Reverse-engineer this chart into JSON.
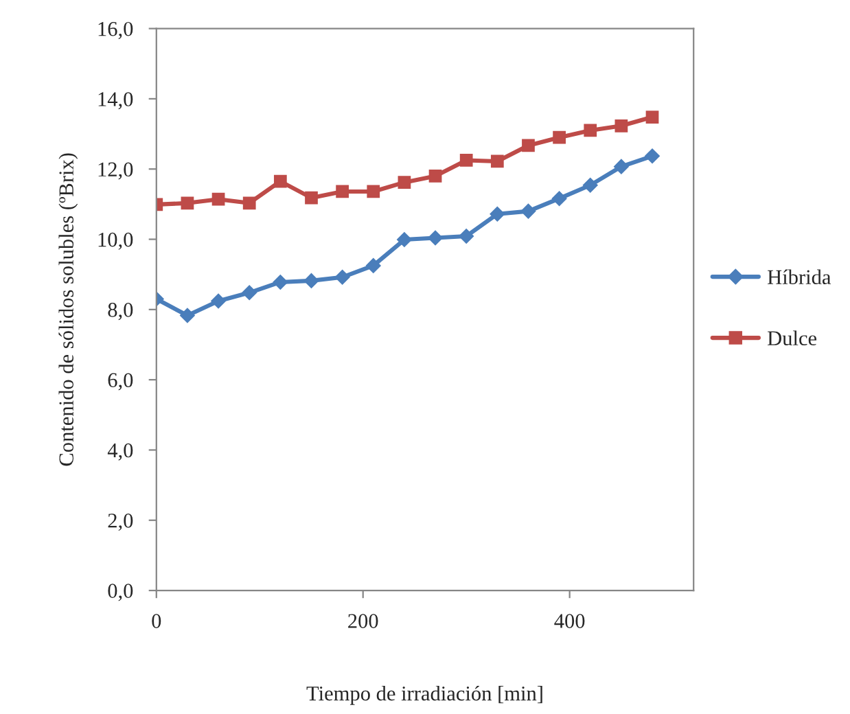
{
  "chart_data": {
    "type": "line",
    "xlabel": "Tiempo de irradiación [min]",
    "ylabel": "Contenido de sólidos solubles (ºBrix)",
    "x": [
      0,
      30,
      60,
      90,
      120,
      150,
      180,
      210,
      240,
      270,
      300,
      330,
      360,
      390,
      420,
      450,
      480
    ],
    "series": [
      {
        "name": "Híbrida",
        "color": "#4a7ebb",
        "marker": "diamond",
        "values": [
          8.3,
          7.83,
          8.24,
          8.48,
          8.78,
          8.82,
          8.92,
          9.25,
          9.99,
          10.04,
          10.09,
          10.72,
          10.8,
          11.16,
          11.54,
          12.07,
          12.37
        ]
      },
      {
        "name": "Dulce",
        "color": "#be4b48",
        "marker": "square",
        "values": [
          10.99,
          11.03,
          11.14,
          11.03,
          11.65,
          11.18,
          11.36,
          11.36,
          11.62,
          11.8,
          12.25,
          12.22,
          12.67,
          12.9,
          13.1,
          13.23,
          13.48
        ]
      }
    ],
    "xlim": [
      0,
      520
    ],
    "xticks": [
      0,
      200,
      400
    ],
    "ylim": [
      0,
      16
    ],
    "yticks": [
      {
        "value": 0,
        "label": "0,0"
      },
      {
        "value": 2,
        "label": "2,0"
      },
      {
        "value": 4,
        "label": "4,0"
      },
      {
        "value": 6,
        "label": "6,0"
      },
      {
        "value": 8,
        "label": "8,0"
      },
      {
        "value": 10,
        "label": "10,0"
      },
      {
        "value": 12,
        "label": "12,0"
      },
      {
        "value": 14,
        "label": "14,0"
      },
      {
        "value": 16,
        "label": "16,0"
      }
    ],
    "grid": false,
    "legend": "right",
    "line_style": "solid"
  }
}
